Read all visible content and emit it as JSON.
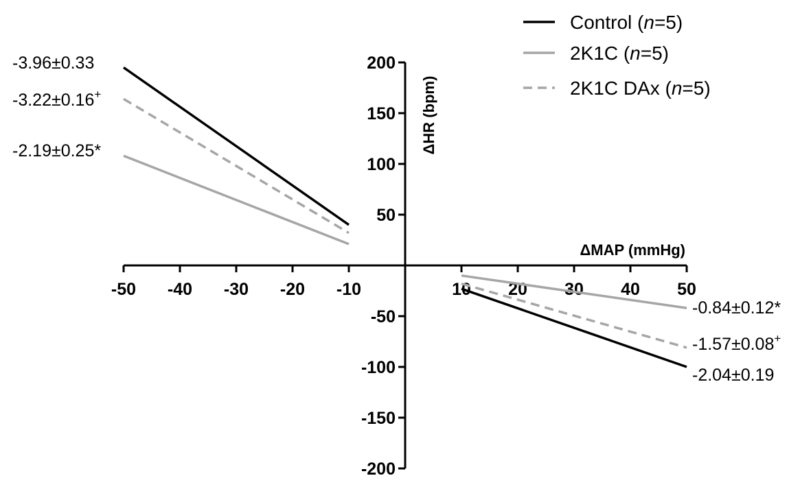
{
  "chart_data": {
    "type": "line",
    "title": "",
    "xlabel": "ΔMAP (mmHg)",
    "ylabel": "ΔHR (bpm)",
    "xlim": [
      -50,
      50
    ],
    "ylim": [
      -200,
      200
    ],
    "x_ticks": [
      -50,
      -40,
      -30,
      -20,
      -10,
      10,
      20,
      30,
      40,
      50
    ],
    "y_ticks": [
      200,
      150,
      100,
      50,
      -50,
      -100,
      -150,
      -200
    ],
    "series": [
      {
        "name": "Control",
        "legend_label": "Control (",
        "legend_n": "n",
        "legend_suffix": "=5)",
        "color": "#000000",
        "dash": "solid",
        "segments": [
          {
            "x": [
              -50,
              -10
            ],
            "y": [
              195,
              40
            ]
          },
          {
            "x": [
              10,
              50
            ],
            "y": [
              -23,
              -100
            ]
          }
        ],
        "labels": [
          {
            "side": "left",
            "text": "-3.96±0.33",
            "sup": ""
          },
          {
            "side": "right",
            "text": "-2.04±0.19",
            "sup": ""
          }
        ]
      },
      {
        "name": "2K1C",
        "legend_label": "2K1C (",
        "legend_n": "n",
        "legend_suffix": "=5)",
        "color": "#a6a6a6",
        "dash": "solid",
        "segments": [
          {
            "x": [
              -50,
              -10
            ],
            "y": [
              108,
              21
            ]
          },
          {
            "x": [
              10,
              50
            ],
            "y": [
              -10,
              -42
            ]
          }
        ],
        "labels": [
          {
            "side": "left",
            "text": "-2.19±0.25*",
            "sup": ""
          },
          {
            "side": "right",
            "text": "-0.84±0.12*",
            "sup": ""
          }
        ]
      },
      {
        "name": "2K1C DAx",
        "legend_label": "2K1C DAx (",
        "legend_n": "n",
        "legend_suffix": "=5)",
        "color": "#a6a6a6",
        "dash": "dashed",
        "segments": [
          {
            "x": [
              -50,
              -10
            ],
            "y": [
              164,
              32
            ]
          },
          {
            "x": [
              10,
              50
            ],
            "y": [
              -18,
              -81
            ]
          }
        ],
        "labels": [
          {
            "side": "left",
            "text": "-3.22±0.16",
            "sup": "+"
          },
          {
            "side": "right",
            "text": "-1.57±0.08",
            "sup": "+"
          }
        ]
      }
    ],
    "legend_position": "top-right"
  }
}
